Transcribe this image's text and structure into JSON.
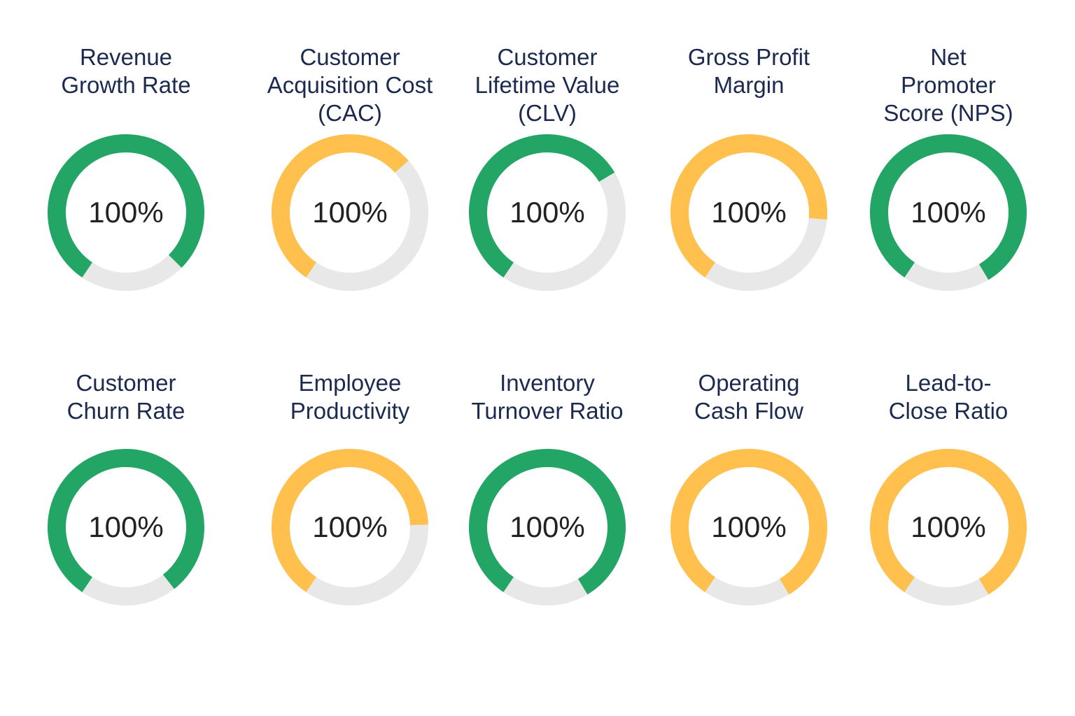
{
  "colors": {
    "good": "#22a565",
    "warn": "#ffc04d",
    "track": "#e8e8e8"
  },
  "chart_data": {
    "type": "gauge",
    "title": "",
    "items": [
      {
        "label": "Revenue\nGrowth Rate",
        "display": "100%",
        "fill_fraction": 0.78,
        "status": "good"
      },
      {
        "label": "Customer\nAcquisition Cost\n(CAC)",
        "display": "100%",
        "fill_fraction": 0.54,
        "status": "warn"
      },
      {
        "label": "Customer\nLifetime Value\n(CLV)",
        "display": "100%",
        "fill_fraction": 0.57,
        "status": "good"
      },
      {
        "label": "Gross Profit\nMargin",
        "display": "100%",
        "fill_fraction": 0.67,
        "status": "warn"
      },
      {
        "label": "Net\nPromoter\nScore (NPS)",
        "display": "100%",
        "fill_fraction": 0.82,
        "status": "good"
      },
      {
        "label": "Customer\nChurn Rate",
        "display": "100%",
        "fill_fraction": 0.8,
        "status": "good"
      },
      {
        "label": "Employee\nProductivity",
        "display": "100%",
        "fill_fraction": 0.65,
        "status": "warn"
      },
      {
        "label": "Inventory\nTurnover Ratio",
        "display": "100%",
        "fill_fraction": 0.82,
        "status": "good"
      },
      {
        "label": "Operating\nCash Flow",
        "display": "100%",
        "fill_fraction": 0.82,
        "status": "warn"
      },
      {
        "label": "Lead-to-\nClose Ratio",
        "display": "100%",
        "fill_fraction": 0.82,
        "status": "warn"
      }
    ]
  }
}
